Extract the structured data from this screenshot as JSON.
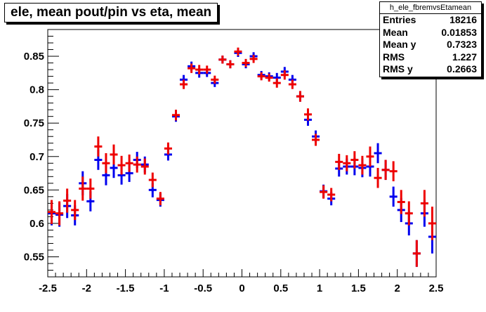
{
  "title": "ele, mean pout/pin vs eta, mean",
  "stats": {
    "name": "h_ele_fbremvsEtamean",
    "rows": [
      {
        "label": "Entries",
        "value": "18216"
      },
      {
        "label": "Mean",
        "value": "0.01853"
      },
      {
        "label": "Mean y",
        "value": "0.7323"
      },
      {
        "label": "RMS",
        "value": "1.227"
      },
      {
        "label": "RMS y",
        "value": "0.2663"
      }
    ]
  },
  "chart_data": {
    "type": "scatter",
    "title": "ele, mean pout/pin vs eta, mean",
    "xlim": [
      -2.5,
      2.5
    ],
    "ylim": [
      0.52,
      0.89
    ],
    "xticks": [
      -2.5,
      -2,
      -1.5,
      -1,
      -0.5,
      0,
      0.5,
      1,
      1.5,
      2,
      2.5
    ],
    "yticks": [
      0.55,
      0.6,
      0.65,
      0.7,
      0.75,
      0.8,
      0.85
    ],
    "x": [
      -2.45,
      -2.35,
      -2.25,
      -2.15,
      -2.05,
      -1.95,
      -1.85,
      -1.75,
      -1.65,
      -1.55,
      -1.45,
      -1.35,
      -1.25,
      -1.15,
      -1.05,
      -0.95,
      -0.85,
      -0.75,
      -0.65,
      -0.55,
      -0.45,
      -0.35,
      -0.25,
      -0.15,
      -0.05,
      0.05,
      0.15,
      0.25,
      0.35,
      0.45,
      0.55,
      0.65,
      0.75,
      0.85,
      0.95,
      1.05,
      1.15,
      1.25,
      1.35,
      1.45,
      1.55,
      1.65,
      1.75,
      1.85,
      1.95,
      2.05,
      2.15,
      2.25,
      2.35,
      2.45
    ],
    "series": [
      {
        "color": "#0000ee",
        "y": [
          0.615,
          0.613,
          0.626,
          0.612,
          0.66,
          0.633,
          0.695,
          0.672,
          0.683,
          0.672,
          0.675,
          0.695,
          0.688,
          0.65,
          0.635,
          0.703,
          0.76,
          0.815,
          0.835,
          0.825,
          0.825,
          0.81,
          0.845,
          0.838,
          0.855,
          0.838,
          0.85,
          0.822,
          0.82,
          0.818,
          0.827,
          0.815,
          0.79,
          0.755,
          0.73,
          0.648,
          0.637,
          0.682,
          0.685,
          0.685,
          0.683,
          0.685,
          0.705,
          0.68,
          0.64,
          0.62,
          0.6,
          0.555,
          0.615,
          0.58
        ],
        "err": [
          0.018,
          0.018,
          0.018,
          0.015,
          0.018,
          0.015,
          0.015,
          0.015,
          0.015,
          0.014,
          0.013,
          0.012,
          0.012,
          0.011,
          0.01,
          0.009,
          0.008,
          0.007,
          0.007,
          0.007,
          0.006,
          0.006,
          0.006,
          0.006,
          0.006,
          0.006,
          0.006,
          0.006,
          0.006,
          0.007,
          0.007,
          0.007,
          0.008,
          0.009,
          0.009,
          0.01,
          0.01,
          0.012,
          0.012,
          0.013,
          0.014,
          0.015,
          0.015,
          0.015,
          0.015,
          0.018,
          0.018,
          0.02,
          0.02,
          0.025
        ]
      },
      {
        "color": "#ee0000",
        "y": [
          0.617,
          0.615,
          0.634,
          0.62,
          0.652,
          0.652,
          0.715,
          0.69,
          0.703,
          0.687,
          0.69,
          0.688,
          0.685,
          0.665,
          0.637,
          0.712,
          0.762,
          0.808,
          0.832,
          0.83,
          0.83,
          0.815,
          0.845,
          0.838,
          0.857,
          0.84,
          0.846,
          0.82,
          0.818,
          0.81,
          0.822,
          0.808,
          0.79,
          0.763,
          0.725,
          0.647,
          0.643,
          0.692,
          0.69,
          0.695,
          0.687,
          0.7,
          0.668,
          0.68,
          0.678,
          0.632,
          0.615,
          0.555,
          0.63,
          0.6
        ]
      }
    ]
  }
}
